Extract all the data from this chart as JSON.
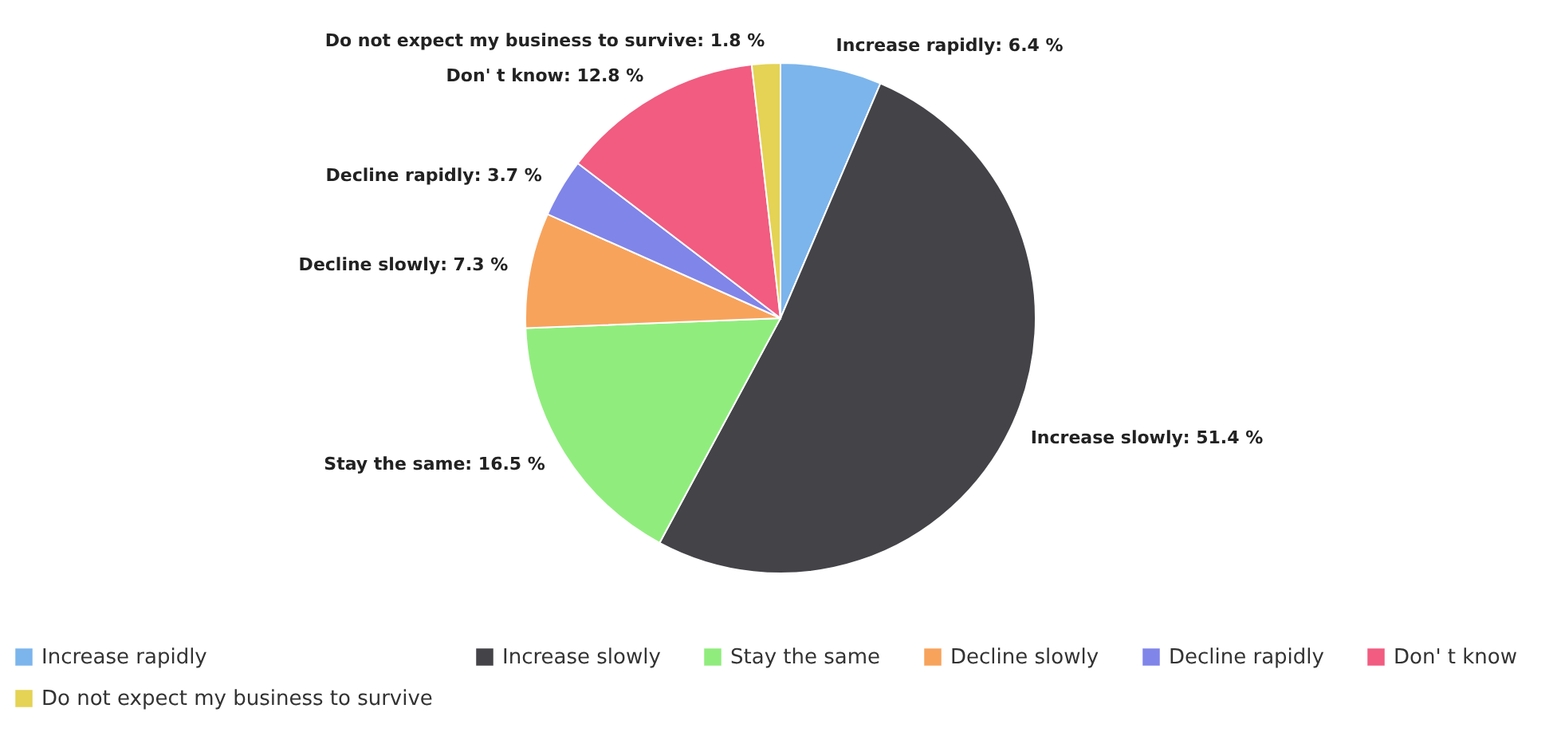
{
  "chart_data": {
    "type": "pie",
    "categories": [
      "Increase rapidly",
      "Increase slowly",
      "Stay the same",
      "Decline slowly",
      "Decline rapidly",
      "Don' t know",
      "Do not expect my business to survive"
    ],
    "values": [
      6.4,
      51.4,
      16.5,
      7.3,
      3.7,
      12.8,
      1.8
    ],
    "value_labels": [
      "Increase rapidly: 6.4 %",
      "Increase slowly: 51.4 %",
      "Stay the same: 16.5 %",
      "Decline slowly: 7.3 %",
      "Decline rapidly: 3.7 %",
      "Don' t know: 12.8 %",
      "Do not expect my business to survive: 1.8 %"
    ],
    "colors": [
      "#7cb5ec",
      "#434348",
      "#90ed7d",
      "#f7a35c",
      "#8085e9",
      "#f15c80",
      "#e4d354"
    ],
    "legend": "bottom"
  }
}
